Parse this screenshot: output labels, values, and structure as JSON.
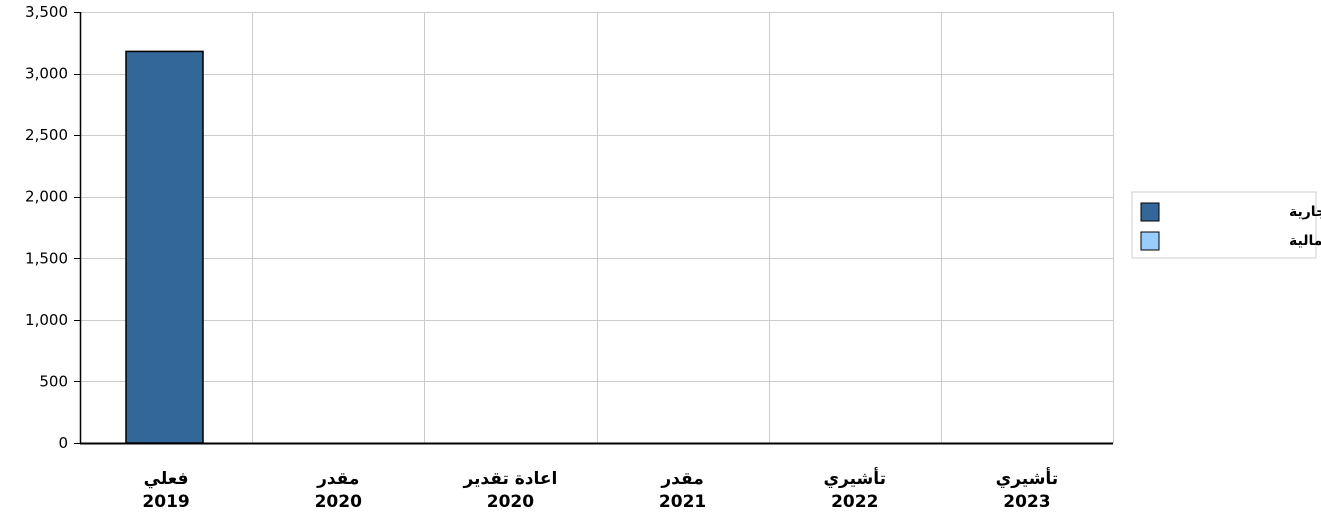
{
  "chart_data": {
    "type": "bar",
    "categories": [
      {
        "label": "فعلي",
        "year": "2019"
      },
      {
        "label": "مقدر",
        "year": "2020"
      },
      {
        "label": "اعادة تقدير",
        "year": "2020"
      },
      {
        "label": "مقدر",
        "year": "2021"
      },
      {
        "label": "تأشيري",
        "year": "2022"
      },
      {
        "label": "تأشيري",
        "year": "2023"
      }
    ],
    "series": [
      {
        "name": "النفقات الجارية",
        "color": "#336699",
        "values": [
          3180,
          0,
          0,
          0,
          0,
          0
        ]
      },
      {
        "name": "النفقات الرأسمالية",
        "color": "#99ccff",
        "values": [
          0,
          0,
          0,
          0,
          0,
          0
        ]
      }
    ],
    "yticks": [
      "0",
      "500",
      "1,000",
      "1,500",
      "2,000",
      "2,500",
      "3,000",
      "3,500"
    ],
    "ylim": [
      0,
      3500
    ],
    "grid": true,
    "legend_position": "right",
    "gridline_color": "#cccccc",
    "axis_color": "#000000"
  }
}
